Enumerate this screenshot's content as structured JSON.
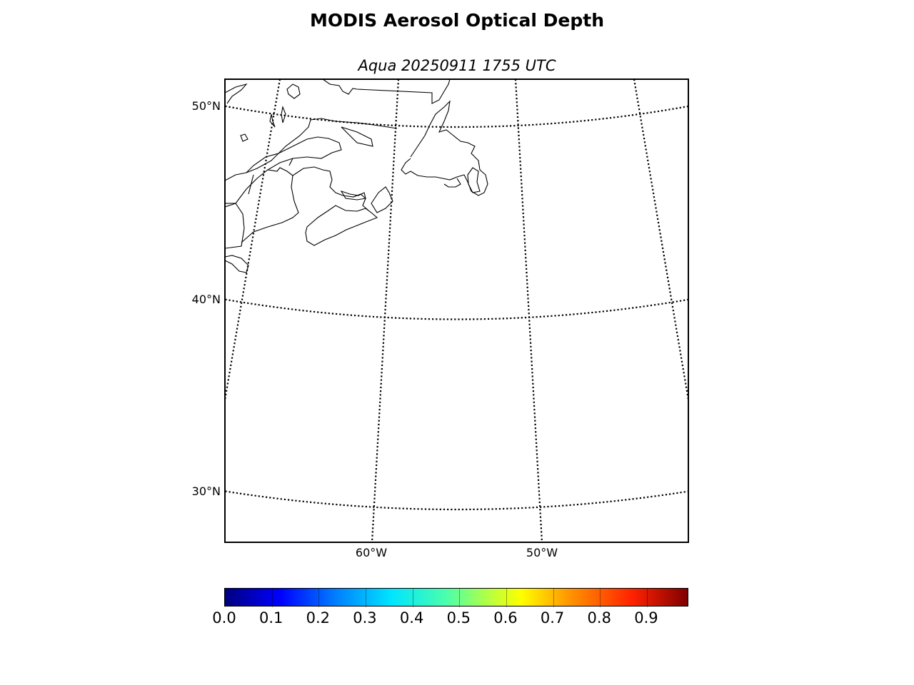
{
  "title": "MODIS Aerosol Optical Depth",
  "subtitle": "Aqua 20250911 1755 UTC",
  "map": {
    "projection": "conic",
    "lat_labels": [
      "50°N",
      "40°N",
      "30°N"
    ],
    "lon_labels": [
      "60°W",
      "50°W"
    ],
    "graticule_style": "dotted",
    "coastline_color": "#000000"
  },
  "colorbar": {
    "colormap": "jet",
    "range": [
      0.0,
      0.99
    ],
    "tick_labels": [
      "0.0",
      "0.1",
      "0.2",
      "0.3",
      "0.4",
      "0.5",
      "0.6",
      "0.7",
      "0.8",
      "0.9"
    ]
  }
}
